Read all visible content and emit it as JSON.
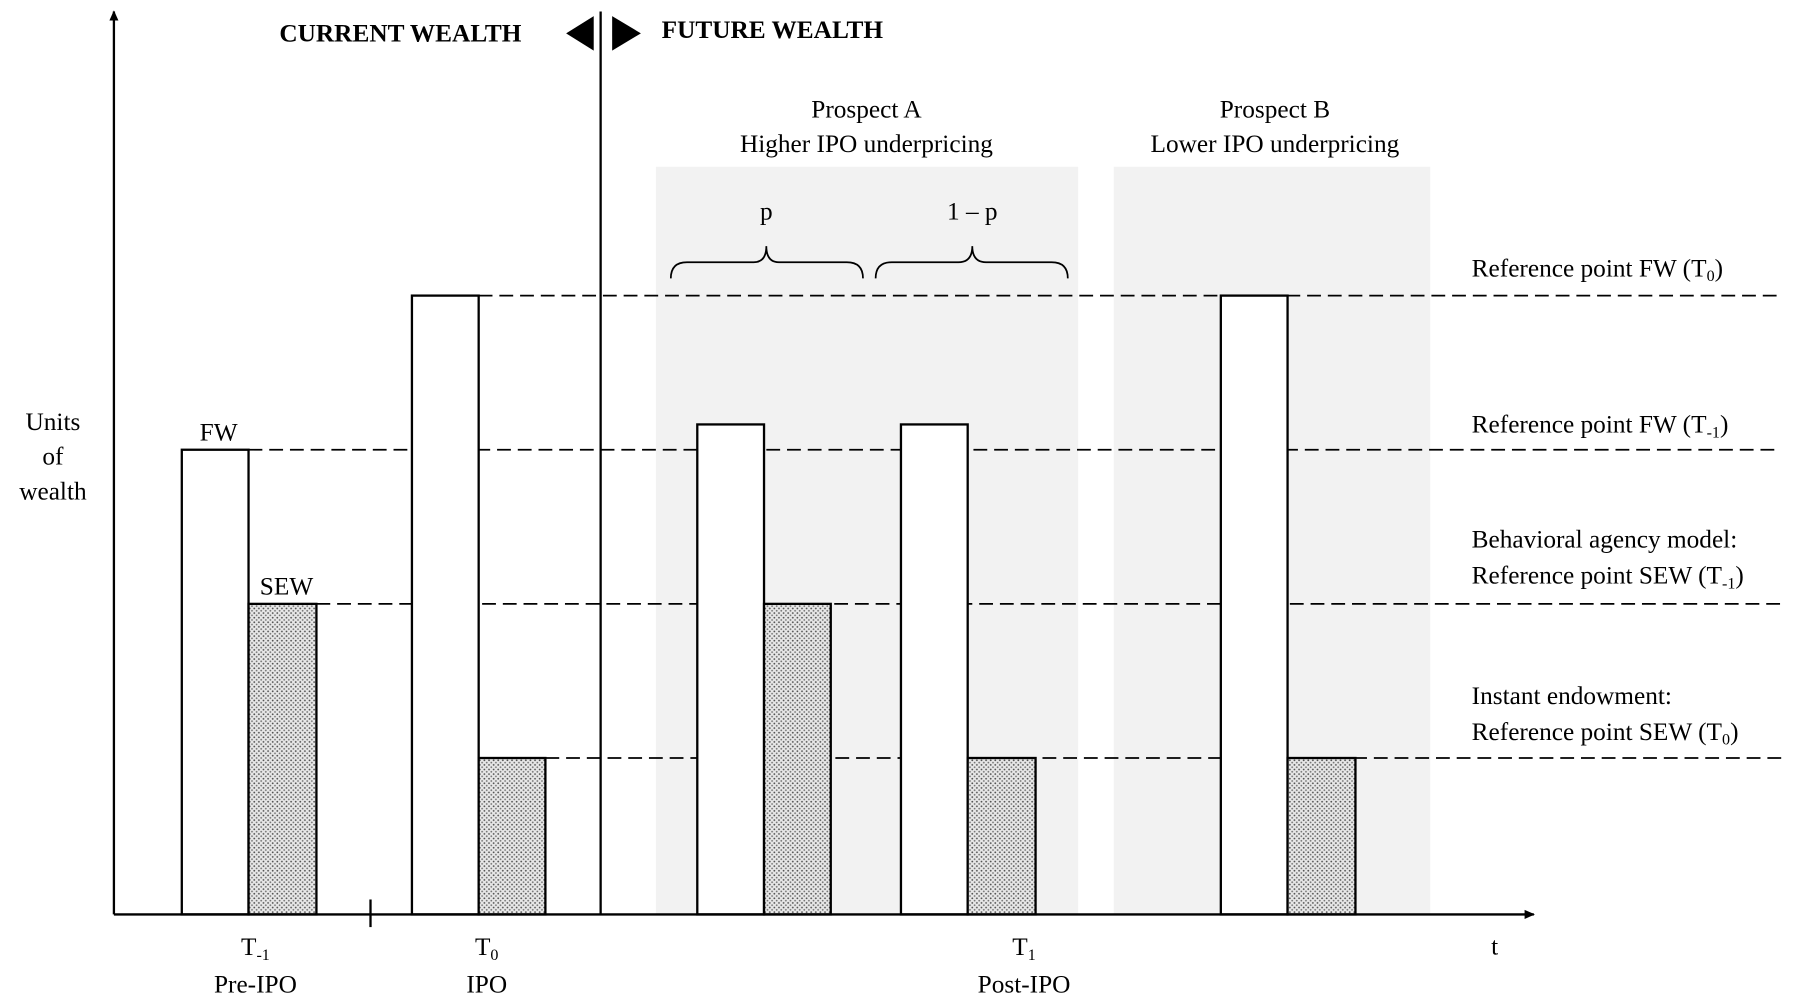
{
  "header": {
    "current": "CURRENT WEALTH",
    "future": "FUTURE WEALTH"
  },
  "y_axis_label": [
    "Units",
    "of",
    "wealth"
  ],
  "x_axis_label": "t",
  "bar_labels": {
    "fw": "FW",
    "sew": "SEW"
  },
  "prospects": [
    {
      "name": "Prospect A",
      "description": "Higher IPO underpricing",
      "branches": [
        "p",
        "1 – p"
      ]
    },
    {
      "name": "Prospect B",
      "description": "Lower IPO underpricing"
    }
  ],
  "reference_points": [
    {
      "text": "Reference point FW (T",
      "sub": "0",
      "end": ")"
    },
    {
      "text": "Reference point FW (T",
      "sub": "-1",
      "end": ")"
    },
    {
      "heading": "Behavioral agency model:",
      "text": "Reference point SEW (T",
      "sub": "-1",
      "end": ")"
    },
    {
      "heading": "Instant endowment:",
      "text": "Reference point SEW (T",
      "sub": "0",
      "end": ")"
    }
  ],
  "periods": [
    {
      "symbol": "T",
      "sub": "-1",
      "label": "Pre-IPO"
    },
    {
      "symbol": "T",
      "sub": "0",
      "label": "IPO"
    },
    {
      "symbol": "T",
      "sub": "1",
      "label": "Post-IPO"
    }
  ]
}
